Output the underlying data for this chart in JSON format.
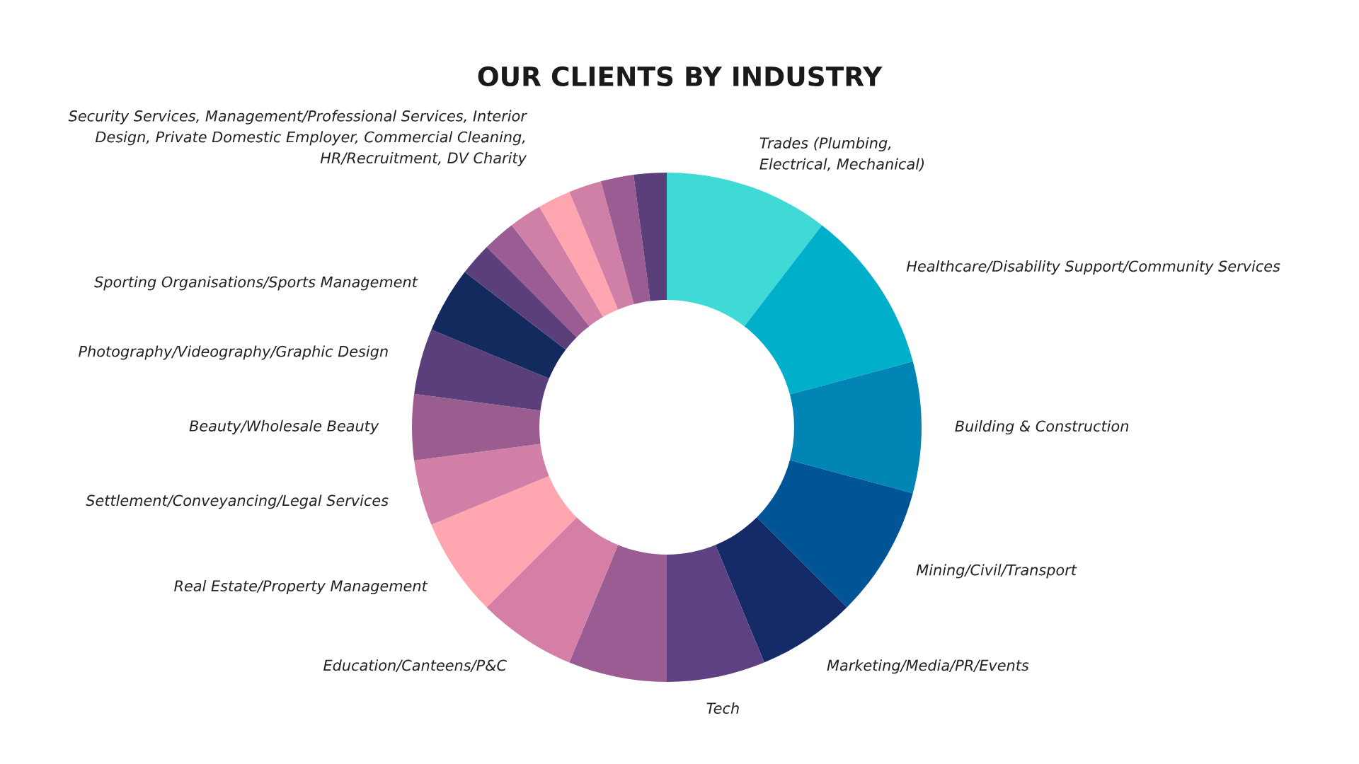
{
  "chart_data": {
    "type": "donut",
    "title": "OUR CLIENTS BY INDUSTRY",
    "categories": [
      "Trades (Plumbing,\nElectrical, Mechanical)",
      "Healthcare/Disability Support/Community Services",
      "Building & Construction",
      "Mining/Civil/Transport",
      "Marketing/Media/PR/Events",
      "Tech",
      null,
      "Education/Canteens/P&C",
      "Real Estate/Property Management",
      "Settlement/Conveyancing/Legal Services",
      "Beauty/Wholesale Beauty",
      "Photography/Videography/Graphic Design",
      "Sporting Organisations/Sports Management",
      null,
      null,
      null,
      null,
      null,
      null,
      null
    ],
    "values": [
      10.42,
      10.42,
      8.33,
      8.33,
      6.25,
      6.25,
      6.25,
      6.25,
      6.25,
      4.17,
      4.17,
      4.17,
      4.17,
      2.08,
      2.08,
      2.08,
      2.09,
      2.08,
      2.08,
      2.08
    ],
    "colors": [
      "#3fd9d6",
      "#00b0cb",
      "#0085b5",
      "#005596",
      "#152b67",
      "#5e4182",
      "#9b5c94",
      "#d67fa6",
      "#ffa6b0",
      "#d17fa6",
      "#9b5c8f",
      "#5a3f7a",
      "#132a5e",
      "#5a3f7a",
      "#9b5c94",
      "#d07fa6",
      "#ffa5b0",
      "#d07fa6",
      "#9b5c94",
      "#5a3f7a"
    ],
    "annotations": [
      "Security Services, Management/Professional Services, Interior\nDesign, Private Domestic Employer, Commercial Cleaning,\nHR/Recruitment, DV Charity"
    ],
    "legend": false
  }
}
